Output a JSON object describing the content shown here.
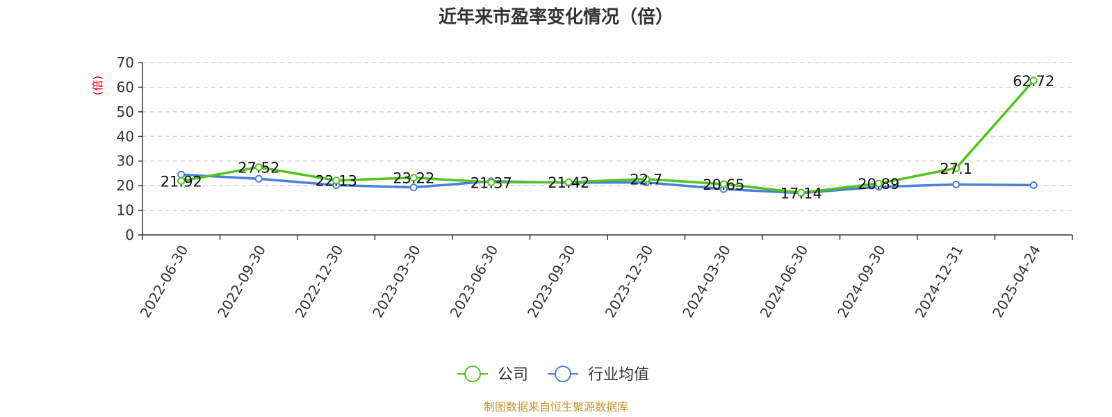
{
  "chart_data": {
    "type": "line",
    "title": "近年来市盈率变化情况（倍）",
    "xlabel": "",
    "ylabel": "(倍)",
    "ylim": [
      0,
      70
    ],
    "yticks": [
      0,
      10,
      20,
      30,
      40,
      50,
      60,
      70
    ],
    "grid": true,
    "legend_position": "bottom-center",
    "categories": [
      "2022-06-30",
      "2022-09-30",
      "2022-12-30",
      "2023-03-30",
      "2023-06-30",
      "2023-09-30",
      "2023-12-30",
      "2024-03-30",
      "2024-06-30",
      "2024-09-30",
      "2024-12-31",
      "2025-04-24"
    ],
    "series": [
      {
        "name": "公司",
        "color": "#52c41a",
        "values": [
          21.92,
          27.52,
          22.13,
          23.22,
          21.37,
          21.42,
          22.7,
          20.65,
          17.14,
          20.89,
          27.1,
          62.72
        ],
        "labels": [
          "21.92",
          "27.52",
          "22.13",
          "23.22",
          "21.37",
          "21.42",
          "22.7",
          "20.65",
          "17.14",
          "20.89",
          "27.1",
          "62.72"
        ]
      },
      {
        "name": "行业均值",
        "color": "#4a7fdc",
        "values": [
          24.5,
          22.8,
          20.2,
          19.3,
          21.8,
          21.2,
          21.3,
          18.6,
          17.0,
          19.5,
          20.5,
          20.2
        ]
      }
    ],
    "source": "制图数据来自恒生聚源数据库"
  }
}
